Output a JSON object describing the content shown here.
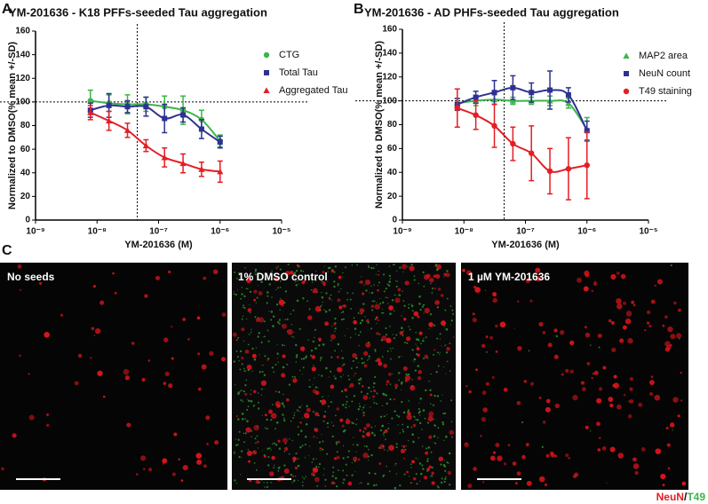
{
  "panels": {
    "a": "A",
    "b": "B",
    "c": "C"
  },
  "chart_data": [
    {
      "type": "line",
      "title": "YM-201636 - K18 PFFs-seeded Tau aggregation",
      "x_label": "YM-201636 (M)",
      "y_label": "Normalized to DMSO(% mean +/-SD)",
      "x_scale": "log",
      "xlim": [
        1e-09,
        1e-05
      ],
      "xticks": [
        {
          "value": 1e-09,
          "label": "10⁻⁹"
        },
        {
          "value": 1e-08,
          "label": "10⁻⁸"
        },
        {
          "value": 1e-07,
          "label": "10⁻⁷"
        },
        {
          "value": 1e-06,
          "label": "10⁻⁶"
        },
        {
          "value": 1e-05,
          "label": "10⁻⁵"
        }
      ],
      "ylim": [
        0,
        160
      ],
      "yticks": [
        0,
        20,
        40,
        60,
        80,
        100,
        120,
        140,
        160
      ],
      "hline": 100,
      "vline": 4.5e-08,
      "x": [
        7.8e-09,
        1.56e-08,
        3.125e-08,
        6.25e-08,
        1.25e-07,
        2.5e-07,
        5e-07,
        1e-06
      ],
      "series": [
        {
          "name": "CTG",
          "color": "#3cb54a",
          "marker": "circle",
          "values": [
            101,
            99,
            98,
            98,
            96,
            93,
            85,
            67
          ],
          "errors": [
            9,
            7,
            8,
            6,
            9,
            12,
            8,
            5
          ]
        },
        {
          "name": "Total Tau",
          "color": "#2e3192",
          "marker": "square",
          "values": [
            93,
            97,
            96,
            96,
            86,
            89,
            77,
            66
          ],
          "errors": [
            6,
            10,
            5,
            8,
            12,
            6,
            8,
            5
          ]
        },
        {
          "name": "Aggregated Tau",
          "color": "#e31e24",
          "marker": "triangle",
          "values": [
            91,
            84,
            76,
            63,
            53,
            48,
            43,
            41
          ],
          "errors": [
            6,
            8,
            6,
            5,
            8,
            8,
            6,
            9
          ]
        }
      ]
    },
    {
      "type": "line",
      "title": "YM-201636 - AD PHFs-seeded Tau aggregation",
      "x_label": "YM-201636 (M)",
      "y_label": "Normalized to DMSO(% mean +/-SD)",
      "x_scale": "log",
      "xlim": [
        1e-09,
        1e-05
      ],
      "xticks": [
        {
          "value": 1e-09,
          "label": "10⁻⁹"
        },
        {
          "value": 1e-08,
          "label": "10⁻⁸"
        },
        {
          "value": 1e-07,
          "label": "10⁻⁷"
        },
        {
          "value": 1e-06,
          "label": "10⁻⁶"
        },
        {
          "value": 1e-05,
          "label": "10⁻⁵"
        }
      ],
      "ylim": [
        0,
        160
      ],
      "yticks": [
        0,
        20,
        40,
        60,
        80,
        100,
        120,
        140,
        160
      ],
      "hline": 100,
      "vline": 4.5e-08,
      "x": [
        7.8e-09,
        1.56e-08,
        3.125e-08,
        6.25e-08,
        1.25e-07,
        2.5e-07,
        5e-07,
        1e-06
      ],
      "series": [
        {
          "name": "MAP2 area",
          "color": "#3cb54a",
          "marker": "triangle",
          "values": [
            98,
            100,
            101,
            100,
            100,
            100,
            98,
            76
          ],
          "errors": [
            4,
            4,
            4,
            3,
            3,
            4,
            4,
            10
          ]
        },
        {
          "name": "NeuN count",
          "color": "#2e3192",
          "marker": "square",
          "values": [
            97,
            103,
            107,
            111,
            107,
            109,
            105,
            75
          ],
          "errors": [
            5,
            5,
            10,
            10,
            8,
            16,
            6,
            8
          ]
        },
        {
          "name": "T49 staining",
          "color": "#e31e24",
          "marker": "circle",
          "values": [
            94,
            88,
            79,
            64,
            56,
            41,
            43,
            46
          ],
          "errors": [
            16,
            12,
            18,
            14,
            23,
            19,
            26,
            28
          ]
        }
      ]
    }
  ],
  "images": [
    {
      "label": "No seeds"
    },
    {
      "label": "1% DMSO control"
    },
    {
      "label": "1 µM YM-201636"
    }
  ],
  "stain_legend": {
    "neun": "NeuN",
    "sep": "/",
    "t49": "T49"
  }
}
